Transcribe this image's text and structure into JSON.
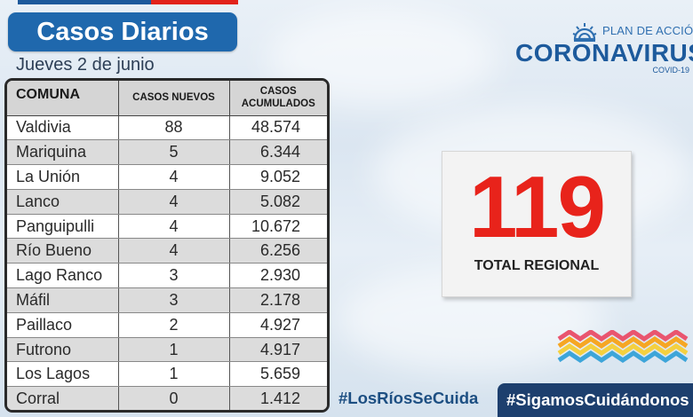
{
  "header": {
    "title": "Casos Diarios",
    "date": "Jueves 2 de junio"
  },
  "table": {
    "headers": {
      "comuna": "COMUNA",
      "nuevos": "CASOS NUEVOS",
      "acumulados_line1": "CASOS",
      "acumulados_line2": "ACUMULADOS"
    },
    "rows": [
      {
        "comuna": "Valdivia",
        "nuevos": "88",
        "acumulados": "48.574"
      },
      {
        "comuna": "Mariquina",
        "nuevos": "5",
        "acumulados": "6.344"
      },
      {
        "comuna": "La Unión",
        "nuevos": "4",
        "acumulados": "9.052"
      },
      {
        "comuna": "Lanco",
        "nuevos": "4",
        "acumulados": "5.082"
      },
      {
        "comuna": "Panguipulli",
        "nuevos": "4",
        "acumulados": "10.672"
      },
      {
        "comuna": "Río Bueno",
        "nuevos": "4",
        "acumulados": "6.256"
      },
      {
        "comuna": "Lago Ranco",
        "nuevos": "3",
        "acumulados": "2.930"
      },
      {
        "comuna": "Máfil",
        "nuevos": "3",
        "acumulados": "2.178"
      },
      {
        "comuna": "Paillaco",
        "nuevos": "2",
        "acumulados": "4.927"
      },
      {
        "comuna": "Futrono",
        "nuevos": "1",
        "acumulados": "4.917"
      },
      {
        "comuna": "Los Lagos",
        "nuevos": "1",
        "acumulados": "5.659"
      },
      {
        "comuna": "Corral",
        "nuevos": "0",
        "acumulados": "1.412"
      }
    ]
  },
  "logo": {
    "plan_text": "PLAN DE ACCIÓN",
    "main_text": "CORONAVIRUS",
    "sub_text": "COVID-19"
  },
  "total": {
    "value": "119",
    "label": "TOTAL REGIONAL"
  },
  "hashtags": {
    "primary": "#LosRíosSeCuida",
    "secondary": "#SigamosCuidándonos"
  },
  "colors": {
    "brand_blue": "#1f68ad",
    "dark_blue": "#1d3f6e",
    "accent_red": "#e8231b"
  },
  "icons": {
    "logo_mark": "sunrise-icon",
    "decoration": "rainbow-waves-icon"
  }
}
